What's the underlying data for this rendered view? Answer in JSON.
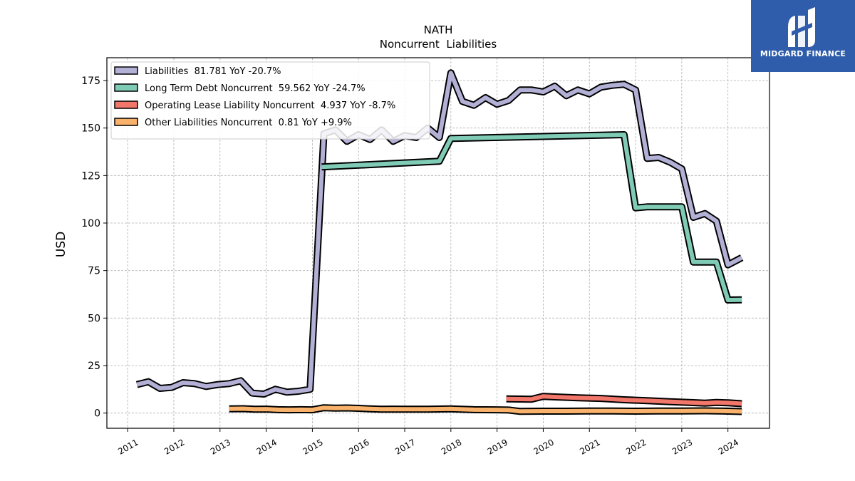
{
  "brand": {
    "name": "MIDGARD FINANCE",
    "color": "#2f5dab",
    "icon": "midgard-logo-icon"
  },
  "chart_data": {
    "type": "line",
    "title": "NATH",
    "subtitle": "Noncurrent  Liabilities",
    "ylabel": "USD",
    "xlabel": "",
    "xlim": [
      2010.55,
      2024.9
    ],
    "ylim": [
      -8,
      187
    ],
    "yticks": [
      0,
      25,
      50,
      75,
      100,
      125,
      150,
      175
    ],
    "xticks": [
      "2011",
      "2012",
      "2013",
      "2014",
      "2015",
      "2016",
      "2017",
      "2018",
      "2019",
      "2020",
      "2021",
      "2022",
      "2023",
      "2024"
    ],
    "grid": true,
    "legend_position": "top-left",
    "series": [
      {
        "name": "Liabilities",
        "legend_label": "Liabilities  81.781 YoY -20.7%",
        "color": "#b3b0d6",
        "points": [
          [
            2011.2,
            15
          ],
          [
            2011.45,
            16.5
          ],
          [
            2011.7,
            13
          ],
          [
            2011.95,
            13.5
          ],
          [
            2012.2,
            16
          ],
          [
            2012.45,
            15.5
          ],
          [
            2012.7,
            14
          ],
          [
            2012.95,
            15
          ],
          [
            2013.2,
            15.5
          ],
          [
            2013.45,
            17
          ],
          [
            2013.7,
            10.5
          ],
          [
            2013.95,
            10
          ],
          [
            2014.2,
            12.5
          ],
          [
            2014.45,
            11
          ],
          [
            2014.7,
            11.5
          ],
          [
            2014.95,
            12.5
          ],
          [
            2015.25,
            147
          ],
          [
            2015.5,
            149
          ],
          [
            2015.75,
            143
          ],
          [
            2016.0,
            146.5
          ],
          [
            2016.25,
            144
          ],
          [
            2016.5,
            149
          ],
          [
            2016.75,
            143
          ],
          [
            2017.0,
            146
          ],
          [
            2017.25,
            145
          ],
          [
            2017.5,
            150
          ],
          [
            2017.75,
            145
          ],
          [
            2018.0,
            179
          ],
          [
            2018.25,
            164
          ],
          [
            2018.5,
            162
          ],
          [
            2018.75,
            166
          ],
          [
            2019.0,
            162.5
          ],
          [
            2019.25,
            164.5
          ],
          [
            2019.5,
            170
          ],
          [
            2019.75,
            170
          ],
          [
            2020.0,
            169
          ],
          [
            2020.25,
            172
          ],
          [
            2020.5,
            167
          ],
          [
            2020.75,
            170
          ],
          [
            2021.0,
            168
          ],
          [
            2021.25,
            171.5
          ],
          [
            2021.5,
            172.5
          ],
          [
            2021.75,
            173
          ],
          [
            2022.0,
            170
          ],
          [
            2022.25,
            134
          ],
          [
            2022.5,
            134.5
          ],
          [
            2022.75,
            132
          ],
          [
            2023.0,
            128.5
          ],
          [
            2023.25,
            103
          ],
          [
            2023.5,
            105
          ],
          [
            2023.75,
            101
          ],
          [
            2024.0,
            78
          ],
          [
            2024.3,
            81.781
          ]
        ]
      },
      {
        "name": "Long Term Debt Noncurrent",
        "legend_label": "Long Term Debt Noncurrent  59.562 YoY -24.7%",
        "color": "#80cbb5",
        "points": [
          [
            2015.2,
            129.5
          ],
          [
            2017.75,
            132.5
          ],
          [
            2018.0,
            144.5
          ],
          [
            2021.75,
            146.5
          ],
          [
            2022.0,
            108
          ],
          [
            2022.25,
            108.5
          ],
          [
            2022.75,
            108.5
          ],
          [
            2023.0,
            108.5
          ],
          [
            2023.25,
            79.5
          ],
          [
            2023.75,
            79.5
          ],
          [
            2024.0,
            59.5
          ],
          [
            2024.3,
            59.562
          ]
        ]
      },
      {
        "name": "Operating Lease Liability Noncurrent",
        "legend_label": "Operating Lease Liability Noncurrent  4.937 YoY -8.7%",
        "color": "#f2776b",
        "points": [
          [
            2019.2,
            7.5
          ],
          [
            2019.75,
            7.3
          ],
          [
            2020.0,
            8.8
          ],
          [
            2020.25,
            8.5
          ],
          [
            2020.75,
            8.0
          ],
          [
            2021.25,
            7.7
          ],
          [
            2021.75,
            7.0
          ],
          [
            2022.25,
            6.5
          ],
          [
            2022.75,
            6.0
          ],
          [
            2023.25,
            5.5
          ],
          [
            2023.5,
            5.2
          ],
          [
            2023.75,
            5.6
          ],
          [
            2024.0,
            5.4
          ],
          [
            2024.3,
            4.937
          ]
        ]
      },
      {
        "name": "Other Liabilities Noncurrent",
        "legend_label": "Other Liabilities Noncurrent  0.81 YoY +9.9%",
        "color": "#f9b26b",
        "points": [
          [
            2013.2,
            2.2
          ],
          [
            2013.5,
            2.3
          ],
          [
            2013.75,
            2.0
          ],
          [
            2014.0,
            2.1
          ],
          [
            2014.25,
            1.8
          ],
          [
            2014.5,
            1.7
          ],
          [
            2014.75,
            1.8
          ],
          [
            2015.0,
            1.7
          ],
          [
            2015.25,
            2.8
          ],
          [
            2015.5,
            2.6
          ],
          [
            2015.75,
            2.7
          ],
          [
            2016.0,
            2.5
          ],
          [
            2016.25,
            2.2
          ],
          [
            2016.5,
            2.0
          ],
          [
            2016.75,
            2.1
          ],
          [
            2017.0,
            2.0
          ],
          [
            2017.5,
            2.0
          ],
          [
            2018.0,
            2.2
          ],
          [
            2018.5,
            1.8
          ],
          [
            2019.0,
            1.7
          ],
          [
            2019.25,
            1.6
          ],
          [
            2019.5,
            0.9
          ],
          [
            2020.0,
            1.0
          ],
          [
            2020.5,
            1.0
          ],
          [
            2021.0,
            1.1
          ],
          [
            2021.5,
            1.1
          ],
          [
            2022.0,
            1.0
          ],
          [
            2022.5,
            1.1
          ],
          [
            2023.0,
            1.1
          ],
          [
            2023.5,
            1.2
          ],
          [
            2024.0,
            1.0
          ],
          [
            2024.3,
            0.81
          ]
        ]
      }
    ]
  }
}
